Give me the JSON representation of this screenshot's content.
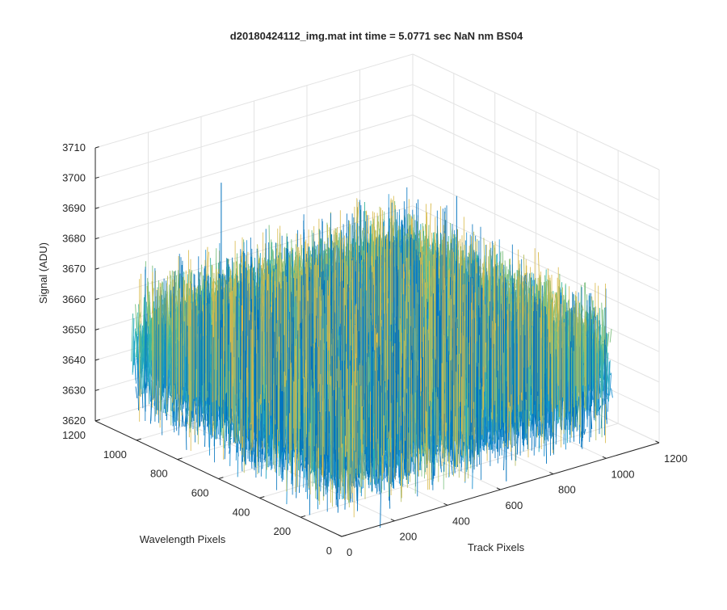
{
  "chart_data": {
    "type": "surface",
    "title": "d20180424112_img.mat int time = 5.0771 sec  NaN nm BS04",
    "xlabel": "Track Pixels",
    "ylabel": "Wavelength Pixels",
    "zlabel": "Signal (ADU)",
    "xlim": [
      0,
      1200
    ],
    "ylim": [
      0,
      1200
    ],
    "zlim": [
      3620,
      3710
    ],
    "x_ticks": [
      "0",
      "200",
      "400",
      "600",
      "800",
      "1000",
      "1200"
    ],
    "y_ticks": [
      "0",
      "200",
      "400",
      "600",
      "800",
      "1000",
      "1200"
    ],
    "z_ticks": [
      "3620",
      "3630",
      "3640",
      "3650",
      "3660",
      "3670",
      "3680",
      "3690",
      "3700",
      "3710"
    ],
    "data_extent": {
      "x": [
        0,
        1024
      ],
      "y": [
        0,
        1024
      ]
    },
    "signal_mean": 3650,
    "signal_typical_range": [
      3630,
      3680
    ],
    "signal_max_spike": 3708,
    "signal_min_spike": 3617,
    "grid": true,
    "colormap": [
      "#0072BD",
      "#1A8FD0",
      "#21A8C4",
      "#3BB7A0",
      "#7CC07E",
      "#B5BD5A",
      "#D9B948"
    ]
  }
}
